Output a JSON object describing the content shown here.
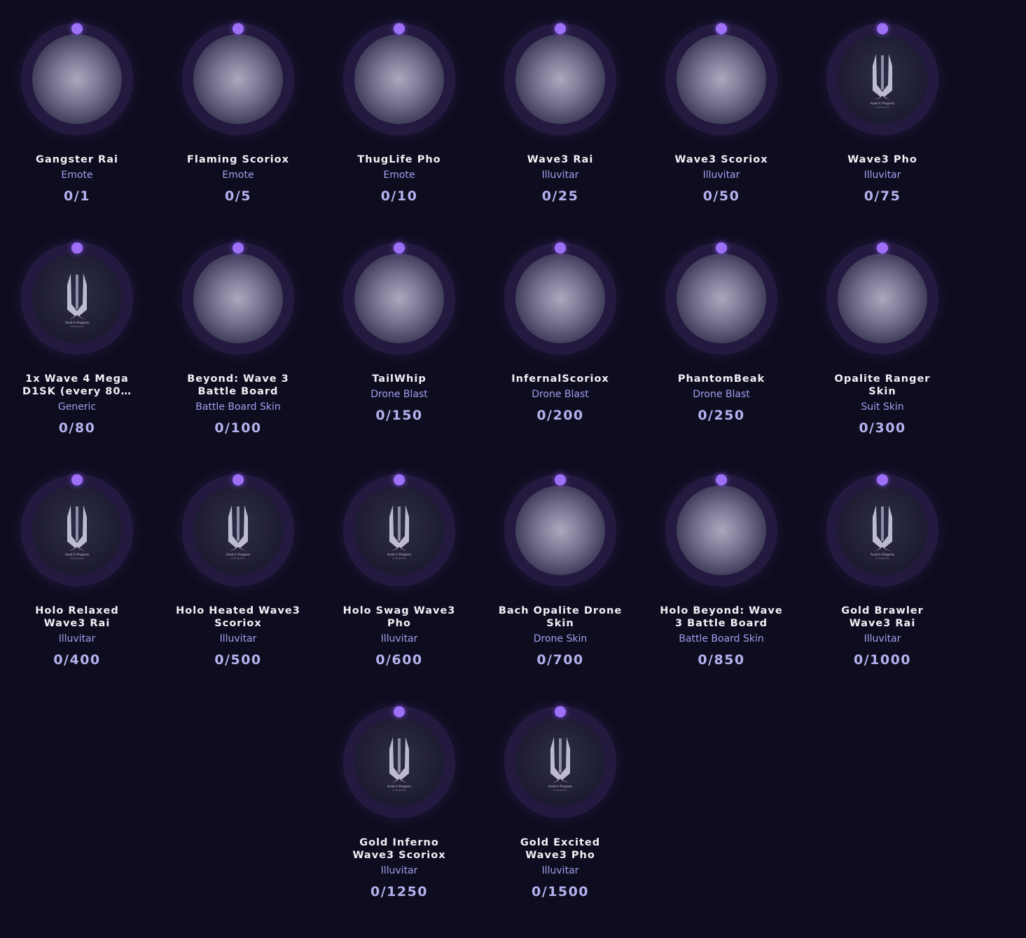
{
  "placeholder": {
    "line1": "Asset In Progress",
    "line2": "Coming Soon"
  },
  "colors": {
    "background": "#0e0d1f",
    "ring": "#241a3f",
    "dot": "#9d70f6",
    "type_text": "#a29ded",
    "count_text": "#b6b1ee"
  },
  "rewards": [
    {
      "name": "Gangster Rai",
      "type": "Emote",
      "progress": "0/1",
      "image": "art"
    },
    {
      "name": "Flaming Scoriox",
      "type": "Emote",
      "progress": "0/5",
      "image": "art"
    },
    {
      "name": "ThugLife Pho",
      "type": "Emote",
      "progress": "0/10",
      "image": "art"
    },
    {
      "name": "Wave3 Rai",
      "type": "Illuvitar",
      "progress": "0/25",
      "image": "art"
    },
    {
      "name": "Wave3 Scoriox",
      "type": "Illuvitar",
      "progress": "0/50",
      "image": "art"
    },
    {
      "name": "Wave3 Pho",
      "type": "Illuvitar",
      "progress": "0/75",
      "image": "placeholder"
    },
    {
      "name": "1x Wave 4 Mega D1SK (every 80…",
      "type": "Generic",
      "progress": "0/80",
      "image": "placeholder"
    },
    {
      "name": "Beyond: Wave 3 Battle Board",
      "type": "Battle Board Skin",
      "progress": "0/100",
      "image": "art"
    },
    {
      "name": "TailWhip",
      "type": "Drone Blast",
      "progress": "0/150",
      "image": "art"
    },
    {
      "name": "InfernalScoriox",
      "type": "Drone Blast",
      "progress": "0/200",
      "image": "art"
    },
    {
      "name": "PhantomBeak",
      "type": "Drone Blast",
      "progress": "0/250",
      "image": "art"
    },
    {
      "name": "Opalite Ranger Skin",
      "type": "Suit Skin",
      "progress": "0/300",
      "image": "art"
    },
    {
      "name": "Holo Relaxed Wave3 Rai",
      "type": "Illuvitar",
      "progress": "0/400",
      "image": "placeholder"
    },
    {
      "name": "Holo Heated Wave3 Scoriox",
      "type": "Illuvitar",
      "progress": "0/500",
      "image": "placeholder"
    },
    {
      "name": "Holo Swag Wave3 Pho",
      "type": "Illuvitar",
      "progress": "0/600",
      "image": "placeholder"
    },
    {
      "name": "Bach Opalite Drone Skin",
      "type": "Drone Skin",
      "progress": "0/700",
      "image": "art"
    },
    {
      "name": "Holo Beyond: Wave 3 Battle Board",
      "type": "Battle Board Skin",
      "progress": "0/850",
      "image": "art"
    },
    {
      "name": "Gold Brawler Wave3 Rai",
      "type": "Illuvitar",
      "progress": "0/1000",
      "image": "placeholder"
    },
    {
      "name": "Gold Inferno Wave3 Scoriox",
      "type": "Illuvitar",
      "progress": "0/1250",
      "image": "placeholder"
    },
    {
      "name": "Gold Excited Wave3 Pho",
      "type": "Illuvitar",
      "progress": "0/1500",
      "image": "placeholder"
    }
  ]
}
